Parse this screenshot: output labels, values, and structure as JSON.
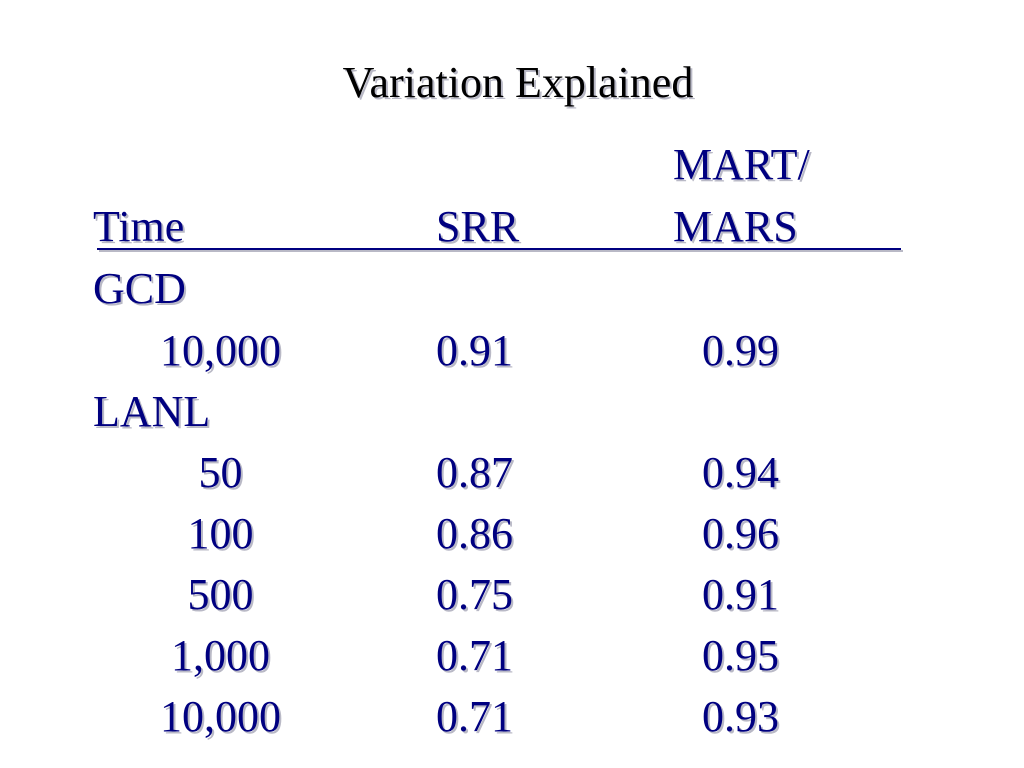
{
  "title": "Variation Explained",
  "table": {
    "headers": {
      "col1": "Time",
      "col2": "SRR",
      "col3_line1": "MART/",
      "col3_line2": "MARS"
    },
    "groups": [
      {
        "name": "GCD",
        "rows": [
          {
            "time": "10,000",
            "srr": "0.91",
            "mart_mars": "0.99"
          }
        ]
      },
      {
        "name": "LANL",
        "rows": [
          {
            "time": "50",
            "srr": "0.87",
            "mart_mars": "0.94"
          },
          {
            "time": "100",
            "srr": "0.86",
            "mart_mars": "0.96"
          },
          {
            "time": "500",
            "srr": "0.75",
            "mart_mars": "0.91"
          },
          {
            "time": "1,000",
            "srr": "0.71",
            "mart_mars": "0.95"
          },
          {
            "time": "10,000",
            "srr": "0.71",
            "mart_mars": "0.93"
          }
        ]
      }
    ]
  }
}
